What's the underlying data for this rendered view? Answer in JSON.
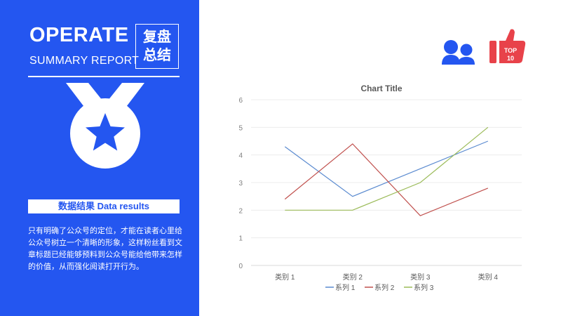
{
  "panel": {
    "title_en": "OPERATE",
    "subtitle_en": "SUMMARY REPORT",
    "title_cn_line1": "复盘",
    "title_cn_line2": "总结",
    "results_label": "数据结果   Data results",
    "paragraph": "只有明确了公众号的定位，才能在读者心里给公众号树立一个清晰的形象，这样粉丝看到文章标题已经能够预料到公众号能给他带来怎样的价值，从而强化阅读打开行为。"
  },
  "icons": {
    "users": "users-icon",
    "top10": "thumbs-up-top10-icon",
    "top10_text1": "TOP",
    "top10_text2": "10",
    "medal": "medal-icon"
  },
  "colors": {
    "panel": "#2456F0",
    "series1": "#5B8BD0",
    "series2": "#C0504D",
    "series3": "#9BBB59",
    "users_icon": "#2456F0",
    "top10_icon": "#E8424A"
  },
  "chart_data": {
    "type": "line",
    "title": "Chart Title",
    "categories": [
      "类别 1",
      "类别 2",
      "类别 3",
      "类别 4"
    ],
    "series": [
      {
        "name": "系列 1",
        "values": [
          4.3,
          2.5,
          3.5,
          4.5
        ]
      },
      {
        "name": "系列 2",
        "values": [
          2.4,
          4.4,
          1.8,
          2.8
        ]
      },
      {
        "name": "系列 3",
        "values": [
          2,
          2,
          3,
          5
        ]
      }
    ],
    "ylim": [
      0,
      6
    ],
    "yticks": [
      "0",
      "1",
      "2",
      "3",
      "4",
      "5",
      "6"
    ],
    "grid": true,
    "legend": "bottom"
  }
}
